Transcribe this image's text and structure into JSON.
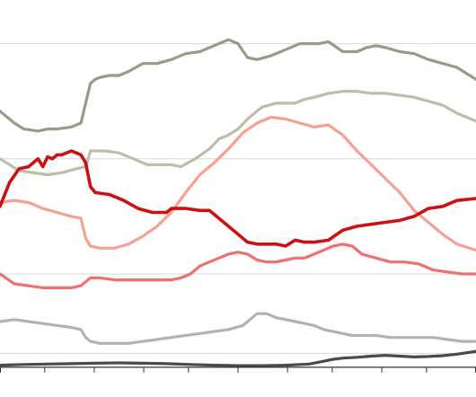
{
  "chart_data": {
    "type": "line",
    "title": "",
    "xlabel": "",
    "ylabel": "",
    "x_range": [
      0,
      100
    ],
    "y_range": [
      0,
      100
    ],
    "grid": true,
    "gridlines_y": [
      11,
      31,
      60,
      89
    ],
    "axis_baseline_y": 7.5,
    "x_ticks": [
      0,
      9.4,
      19.8,
      30.2,
      39.6,
      50.0,
      60.4,
      69.8,
      80.2,
      89.6,
      100
    ],
    "series": [
      {
        "color": "#9a9a88",
        "stroke_width": 3.2,
        "x": [
          0,
          3,
          5,
          8,
          10,
          12,
          15,
          17,
          19,
          20,
          21,
          23,
          25,
          27,
          30,
          33,
          36,
          39,
          42,
          45,
          47,
          48,
          50,
          52,
          54,
          57,
          60,
          63,
          65,
          67,
          69,
          72,
          75,
          77,
          79,
          81,
          84,
          87,
          90,
          93,
          96,
          100
        ],
        "y": [
          72,
          69,
          67.5,
          67,
          67.5,
          67.5,
          68,
          69,
          79,
          80,
          80.5,
          81,
          81,
          82,
          84,
          84,
          85,
          86.5,
          87,
          88.5,
          89.5,
          90,
          89,
          85.5,
          85,
          86,
          87.5,
          89,
          89,
          89,
          89.5,
          87,
          87,
          88,
          88.5,
          88,
          87,
          86.5,
          85,
          84,
          83,
          80
        ]
      },
      {
        "color": "#bdbdac",
        "stroke_width": 3.2,
        "x": [
          0,
          2,
          4,
          7,
          10,
          13,
          16,
          18,
          19,
          20,
          22,
          25,
          28,
          31,
          34,
          36,
          38,
          41,
          44,
          46,
          48,
          50,
          52,
          55,
          58,
          60,
          62,
          64,
          66,
          69,
          72,
          75,
          78,
          81,
          84,
          87,
          90,
          93,
          96,
          100
        ],
        "y": [
          60,
          58.5,
          57,
          56.5,
          56,
          56.5,
          57.5,
          58,
          62,
          62,
          62,
          61.5,
          60,
          58.5,
          58.5,
          58.5,
          58,
          60,
          62.5,
          65,
          66,
          67.5,
          70,
          73,
          74,
          74,
          74,
          75,
          75.5,
          76.5,
          77,
          77,
          76.5,
          76.5,
          76,
          75.5,
          74.5,
          73.5,
          71.5,
          69.5
        ]
      },
      {
        "color": "#f6a090",
        "stroke_width": 3.2,
        "x": [
          0,
          3,
          6,
          9,
          12,
          15,
          17,
          18,
          19,
          21,
          24,
          27,
          30,
          33,
          36,
          39,
          42,
          45,
          48,
          51,
          54,
          57,
          60,
          63,
          66,
          69,
          72,
          75,
          78,
          81,
          84,
          87,
          90,
          93,
          96,
          100
        ],
        "y": [
          49,
          49.5,
          49,
          47.5,
          46.5,
          45.5,
          45,
          40,
          38,
          37.5,
          37.5,
          38.5,
          40.5,
          43,
          46.5,
          51.5,
          56,
          59,
          62.5,
          66.5,
          69,
          70.5,
          70,
          69,
          68,
          68.5,
          66,
          62,
          58.5,
          55,
          51.5,
          47,
          44,
          41,
          38.5,
          37
        ]
      },
      {
        "color": "#cc1111",
        "stroke_width": 3.6,
        "x": [
          0,
          2,
          4,
          6,
          8,
          9,
          10,
          11,
          12,
          13,
          14,
          15,
          16,
          17,
          18,
          19,
          20,
          23,
          26,
          29,
          32,
          35,
          36,
          39,
          42,
          44,
          46,
          48,
          50,
          52,
          54,
          56,
          58,
          60,
          62,
          64,
          66,
          69,
          72,
          75,
          78,
          81,
          84,
          87,
          90,
          93,
          96,
          100
        ],
        "y": [
          48,
          54,
          57.5,
          58,
          60,
          58,
          60.5,
          60,
          61,
          61,
          61.5,
          62,
          61.5,
          61,
          59,
          53,
          51.5,
          51,
          49.5,
          47.5,
          46.5,
          46.5,
          47.5,
          47.5,
          47,
          47,
          45,
          43,
          41,
          39,
          38.5,
          38.5,
          38.5,
          38,
          39.5,
          39,
          39,
          39.5,
          42,
          43,
          43.5,
          44,
          44.5,
          45.5,
          47.5,
          48,
          49.5,
          50
        ]
      },
      {
        "color": "#f07070",
        "stroke_width": 3.2,
        "x": [
          0,
          3,
          6,
          9,
          12,
          15,
          17,
          18,
          19,
          21,
          24,
          27,
          30,
          33,
          36,
          38,
          40,
          42,
          44,
          46,
          48,
          50,
          52,
          54,
          56,
          58,
          60,
          62,
          64,
          66,
          68,
          70,
          72,
          74,
          76,
          79,
          82,
          85,
          88,
          91,
          94,
          97,
          100
        ],
        "y": [
          31,
          28.5,
          28,
          27.5,
          27.5,
          27.5,
          28,
          29,
          30,
          30,
          29.5,
          29.5,
          29.5,
          29.5,
          29.5,
          30,
          31,
          33,
          34,
          35,
          36,
          36.5,
          36,
          34.5,
          34,
          34,
          34.5,
          35,
          35,
          36,
          37,
          38,
          38.5,
          38,
          36,
          35,
          34,
          34,
          33.5,
          32,
          31.5,
          31,
          31
        ]
      },
      {
        "color": "#b2b2b2",
        "stroke_width": 3.2,
        "x": [
          0,
          3,
          6,
          9,
          12,
          15,
          17,
          18,
          19,
          21,
          24,
          27,
          30,
          33,
          36,
          39,
          42,
          45,
          48,
          51,
          53,
          54,
          56,
          58,
          60,
          62,
          64,
          66,
          68,
          70,
          72,
          74,
          76,
          79,
          82,
          85,
          88,
          91,
          94,
          97,
          100
        ],
        "y": [
          19,
          19.5,
          19,
          18.5,
          18,
          17.5,
          17,
          15,
          14,
          13.5,
          13.5,
          13.5,
          14,
          14.5,
          15,
          15.5,
          16,
          16.5,
          17,
          18,
          20,
          21,
          21,
          20,
          19.5,
          19,
          18.5,
          18,
          17,
          16.5,
          16,
          15.5,
          15.5,
          15.5,
          15,
          15,
          15,
          15,
          14.5,
          14,
          14
        ]
      },
      {
        "color": "#4a4a4a",
        "stroke_width": 3.2,
        "x": [
          0,
          5,
          10,
          15,
          20,
          25,
          30,
          35,
          40,
          45,
          50,
          55,
          60,
          65,
          68,
          70,
          72,
          75,
          78,
          81,
          84,
          87,
          90,
          93,
          96,
          100
        ],
        "y": [
          8,
          8.2,
          8.3,
          8.4,
          8.5,
          8.6,
          8.5,
          8.4,
          8.2,
          8,
          7.9,
          7.9,
          8,
          8.3,
          9,
          9.5,
          9.8,
          10,
          10.3,
          10.5,
          10.3,
          10.1,
          10.2,
          10.4,
          10.8,
          11.5
        ]
      }
    ]
  }
}
